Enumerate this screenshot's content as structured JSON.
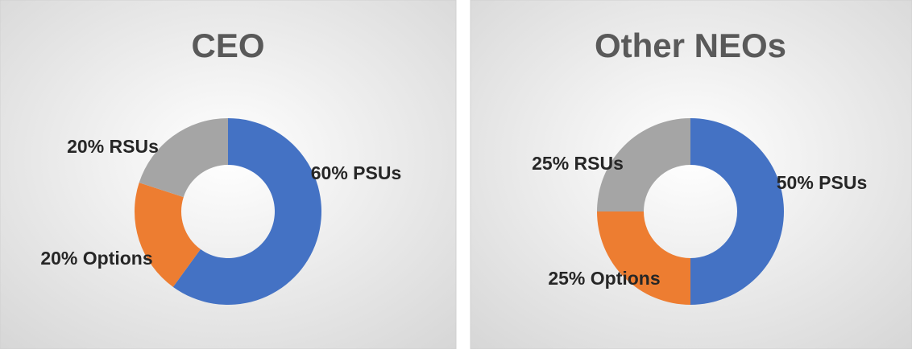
{
  "chart_data": [
    {
      "type": "donut",
      "title": "CEO",
      "values": [
        60,
        20,
        20
      ],
      "value_labels": [
        "60% PSUs",
        "20% Options",
        "20% RSUs"
      ],
      "colors": [
        "#4472c4",
        "#ed7d31",
        "#a5a5a5"
      ]
    },
    {
      "type": "donut",
      "title": "Other NEOs",
      "values": [
        50,
        25,
        25
      ],
      "value_labels": [
        "50% PSUs",
        "25% Options",
        "25% RSUs"
      ],
      "colors": [
        "#4472c4",
        "#ed7d31",
        "#a5a5a5"
      ]
    }
  ]
}
